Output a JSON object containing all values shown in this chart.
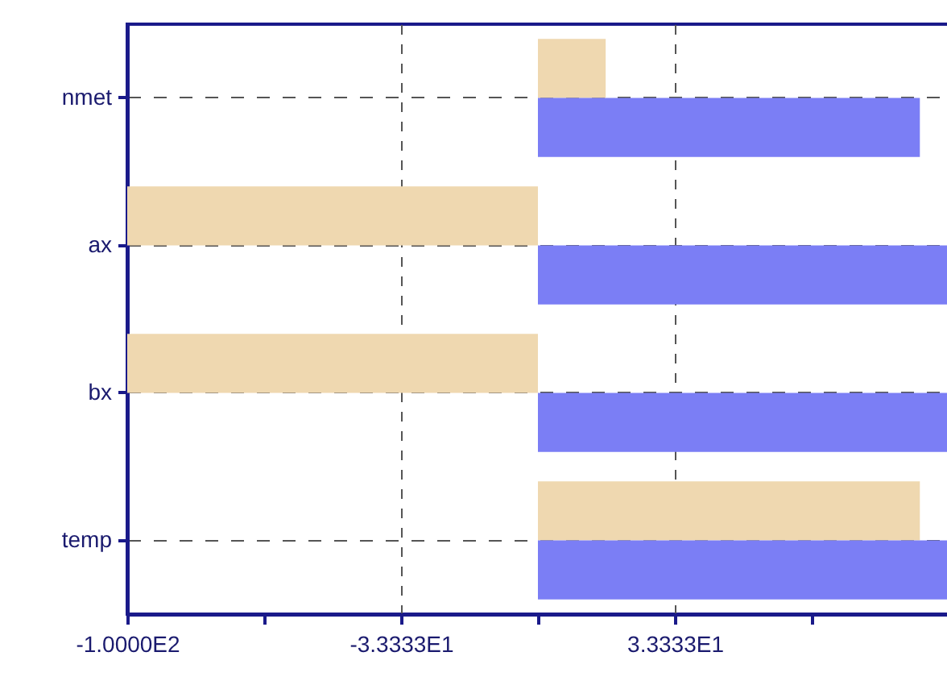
{
  "chart_data": {
    "type": "bar",
    "orientation": "horizontal",
    "categories": [
      "nmet",
      "ax",
      "bx",
      "temp"
    ],
    "series": [
      {
        "color": "#efd8b0",
        "values": [
          16.5,
          -100,
          -100,
          93
        ]
      },
      {
        "color": "#7b7ef5",
        "values": [
          93,
          100,
          100,
          100
        ]
      }
    ],
    "xlim": [
      -100,
      100
    ],
    "xticks": [
      {
        "value": -100,
        "label": "-1.0000E2"
      },
      {
        "value": -66.6667,
        "label": null
      },
      {
        "value": -33.3333,
        "label": "-3.3333E1"
      },
      {
        "value": 0,
        "label": null
      },
      {
        "value": 33.3333,
        "label": "3.3333E1"
      },
      {
        "value": 66.6667,
        "label": null
      }
    ],
    "grid": true
  }
}
